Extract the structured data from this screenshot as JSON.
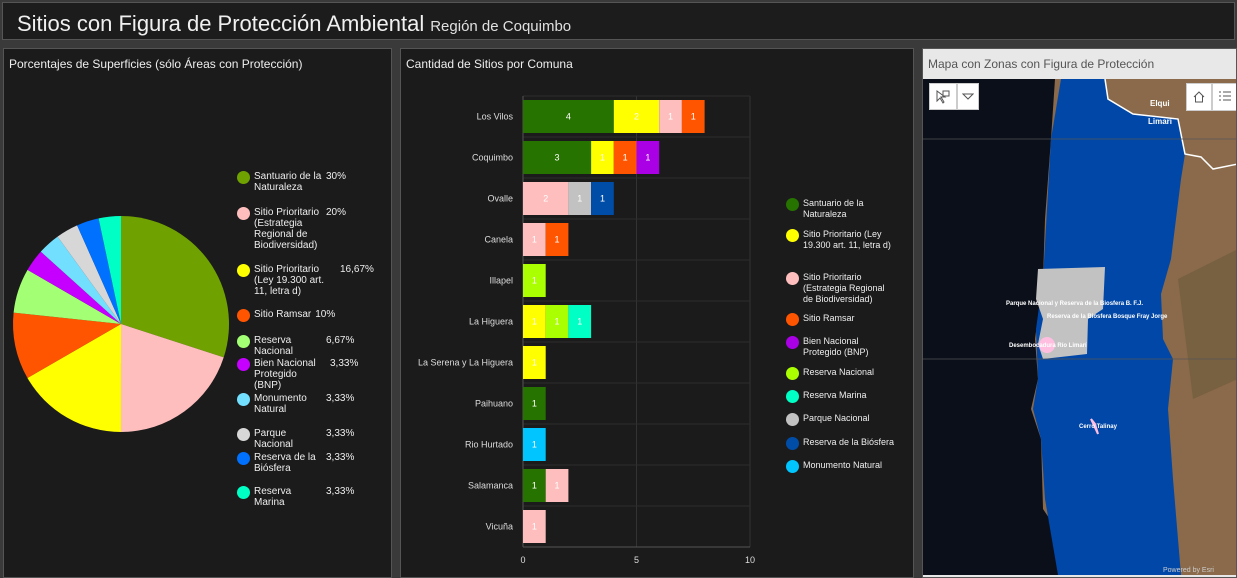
{
  "header": {
    "title": "Sitios con Figura de Protección Ambiental",
    "subtitle": "Región de Coquimbo"
  },
  "pie_panel": {
    "title": "Porcentajes de Superficies (sólo Áreas con Protección)"
  },
  "bar_panel": {
    "title": "Cantidad de Sitios por Comuna"
  },
  "map_panel": {
    "title": "Mapa con Zonas con Figura de Protección",
    "labels": {
      "elqui": "Elqui",
      "limari": "Limarí",
      "fray_jorge_pn": "Parque Nacional y Reserva de la Biosfera B. F.J.",
      "fray_jorge_rb": "Reserva de la Biosfera Bosque Fray Jorge",
      "rio_limari": "Desembocadura Río Limarí",
      "talinay": "Cerro Talinay"
    },
    "attribution": "Powered by Esri",
    "tools": [
      "select-icon",
      "dropdown-icon",
      "home-icon",
      "legend-list-icon"
    ]
  },
  "chart_data": [
    {
      "type": "pie",
      "title": "Porcentajes de Superficies (sólo Áreas con Protección)",
      "slices": [
        {
          "label": "Santuario de la Naturaleza",
          "value": 30,
          "pct": "30%",
          "color": "#6fa200"
        },
        {
          "label": "Sitio Prioritario (Estrategia Regional de Biodiversidad)",
          "value": 20,
          "pct": "20%",
          "color": "#ffbebe"
        },
        {
          "label": "Sitio Prioritario (Ley 19.300 art. 11, letra d)",
          "value": 16.67,
          "pct": "16,67%",
          "color": "#ffff00"
        },
        {
          "label": "Sitio Ramsar",
          "value": 10,
          "pct": "10%",
          "color": "#ff5500"
        },
        {
          "label": "Reserva Nacional",
          "value": 6.67,
          "pct": "6,67%",
          "color": "#a3ff73"
        },
        {
          "label": "Bien Nacional Protegido (BNP)",
          "value": 3.33,
          "pct": "3,33%",
          "color": "#c500ff"
        },
        {
          "label": "Monumento Natural",
          "value": 3.33,
          "pct": "3,33%",
          "color": "#73dfff"
        },
        {
          "label": "Parque Nacional",
          "value": 3.33,
          "pct": "3,33%",
          "color": "#d7d7d7"
        },
        {
          "label": "Reserva de la Biósfera",
          "value": 3.33,
          "pct": "3,33%",
          "color": "#0070ff"
        },
        {
          "label": "Reserva Marina",
          "value": 3.33,
          "pct": "3,33%",
          "color": "#00ffc5"
        }
      ],
      "legend": "right"
    },
    {
      "type": "bar",
      "orientation": "horizontal",
      "stacked": true,
      "title": "Cantidad de Sitios por Comuna",
      "categories": [
        "Los Vilos",
        "Coquimbo",
        "Ovalle",
        "Canela",
        "Illapel",
        "La Higuera",
        "La Serena y La Higuera",
        "Paihuano",
        "Rio Hurtado",
        "Salamanca",
        "Vicuña"
      ],
      "series": [
        {
          "name": "Santuario de la Naturaleza",
          "color": "#267300",
          "values": [
            4,
            3,
            0,
            0,
            0,
            0,
            0,
            1,
            0,
            1,
            0
          ]
        },
        {
          "name": "Sitio Prioritario (Ley 19.300 art. 11, letra d)",
          "color": "#ffff00",
          "values": [
            2,
            1,
            0,
            0,
            0,
            1,
            1,
            0,
            0,
            0,
            0
          ]
        },
        {
          "name": "Sitio Prioritario (Estrategia Regional de Biodiversidad)",
          "color": "#ffbebe",
          "values": [
            1,
            0,
            2,
            1,
            0,
            0,
            0,
            0,
            0,
            1,
            1
          ]
        },
        {
          "name": "Sitio Ramsar",
          "color": "#ff5500",
          "values": [
            1,
            1,
            0,
            1,
            0,
            0,
            0,
            0,
            0,
            0,
            0
          ]
        },
        {
          "name": "Bien Nacional Protegido (BNP)",
          "color": "#a900e6",
          "values": [
            0,
            1,
            0,
            0,
            0,
            0,
            0,
            0,
            0,
            0,
            0
          ]
        },
        {
          "name": "Reserva Nacional",
          "color": "#aaff00",
          "values": [
            0,
            0,
            0,
            0,
            1,
            1,
            0,
            0,
            0,
            0,
            0
          ]
        },
        {
          "name": "Reserva Marina",
          "color": "#00ffc5",
          "values": [
            0,
            0,
            0,
            0,
            0,
            1,
            0,
            0,
            0,
            0,
            0
          ]
        },
        {
          "name": "Parque Nacional",
          "color": "#c2c2c2",
          "values": [
            0,
            0,
            1,
            0,
            0,
            0,
            0,
            0,
            0,
            0,
            0
          ]
        },
        {
          "name": "Reserva de la Biósfera",
          "color": "#004da8",
          "values": [
            0,
            0,
            1,
            0,
            0,
            0,
            0,
            0,
            0,
            0,
            0
          ]
        },
        {
          "name": "Monumento Natural",
          "color": "#00c5ff",
          "values": [
            0,
            0,
            0,
            0,
            0,
            0,
            0,
            0,
            1,
            0,
            0
          ]
        }
      ],
      "xlim": [
        0,
        10
      ],
      "xticks": [
        "0",
        "5",
        "10"
      ],
      "grid": true,
      "legend": "right"
    }
  ]
}
